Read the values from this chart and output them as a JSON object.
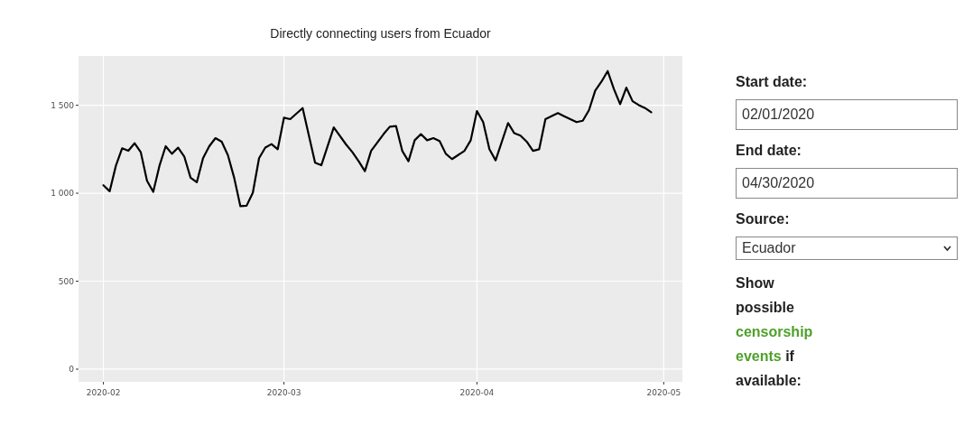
{
  "chart_data": [
    {
      "type": "line",
      "title": "Directly connecting users from Ecuador",
      "x": [
        "2020-02-01",
        "2020-02-02",
        "2020-02-03",
        "2020-02-04",
        "2020-02-05",
        "2020-02-06",
        "2020-02-07",
        "2020-02-08",
        "2020-02-09",
        "2020-02-10",
        "2020-02-11",
        "2020-02-12",
        "2020-02-13",
        "2020-02-14",
        "2020-02-15",
        "2020-02-16",
        "2020-02-17",
        "2020-02-18",
        "2020-02-19",
        "2020-02-20",
        "2020-02-21",
        "2020-02-22",
        "2020-02-23",
        "2020-02-24",
        "2020-02-25",
        "2020-02-26",
        "2020-02-27",
        "2020-02-28",
        "2020-02-29",
        "2020-03-01",
        "2020-03-02",
        "2020-03-04",
        "2020-03-06",
        "2020-03-07",
        "2020-03-09",
        "2020-03-11",
        "2020-03-12",
        "2020-03-13",
        "2020-03-14",
        "2020-03-15",
        "2020-03-17",
        "2020-03-18",
        "2020-03-19",
        "2020-03-20",
        "2020-03-21",
        "2020-03-22",
        "2020-03-23",
        "2020-03-24",
        "2020-03-25",
        "2020-03-26",
        "2020-03-27",
        "2020-03-28",
        "2020-03-30",
        "2020-03-31",
        "2020-04-01",
        "2020-04-02",
        "2020-04-03",
        "2020-04-04",
        "2020-04-06",
        "2020-04-07",
        "2020-04-08",
        "2020-04-09",
        "2020-04-10",
        "2020-04-11",
        "2020-04-12",
        "2020-04-14",
        "2020-04-15",
        "2020-04-17",
        "2020-04-18",
        "2020-04-19",
        "2020-04-20",
        "2020-04-21",
        "2020-04-22",
        "2020-04-23",
        "2020-04-24",
        "2020-04-25",
        "2020-04-26",
        "2020-04-27",
        "2020-04-28",
        "2020-04-29"
      ],
      "series": [
        {
          "color": "#000000",
          "values": [
            1045,
            1011,
            1156,
            1255,
            1241,
            1284,
            1233,
            1071,
            1008,
            1156,
            1267,
            1224,
            1259,
            1207,
            1088,
            1062,
            1199,
            1267,
            1313,
            1293,
            1216,
            1088,
            926,
            929,
            1003,
            1199,
            1259,
            1279,
            1250,
            1429,
            1421,
            1484,
            1173,
            1159,
            1374,
            1276,
            1233,
            1182,
            1125,
            1241,
            1336,
            1378,
            1382,
            1241,
            1182,
            1301,
            1336,
            1301,
            1313,
            1296,
            1224,
            1194,
            1241,
            1301,
            1467,
            1404,
            1250,
            1187,
            1399,
            1341,
            1327,
            1293,
            1241,
            1250,
            1421,
            1455,
            1438,
            1404,
            1412,
            1472,
            1583,
            1634,
            1694,
            1592,
            1506,
            1600,
            1523,
            1501,
            1484,
            1460
          ]
        }
      ],
      "xlim": [
        "2020-01-28",
        "2020-05-04"
      ],
      "xticks": [
        {
          "value": "2020-02-01",
          "label": "2020-02"
        },
        {
          "value": "2020-03-01",
          "label": "2020-03"
        },
        {
          "value": "2020-04-01",
          "label": "2020-04"
        },
        {
          "value": "2020-05-01",
          "label": "2020-05"
        }
      ],
      "ylim": [
        -72,
        1780
      ],
      "yticks": [
        0,
        500,
        {
          "value": 1000,
          "label": "1 000"
        },
        {
          "value": 1500,
          "label": "1 500"
        }
      ],
      "grid": true,
      "marker": "none",
      "line_style": "solid"
    },
    {
      "type": "other",
      "annotations": [
        "Start date:",
        "02/01/2020",
        "End date:",
        "04/30/2020",
        "Source:",
        "Ecuador",
        "Show possible",
        "censorship events",
        "if available:"
      ]
    }
  ]
}
